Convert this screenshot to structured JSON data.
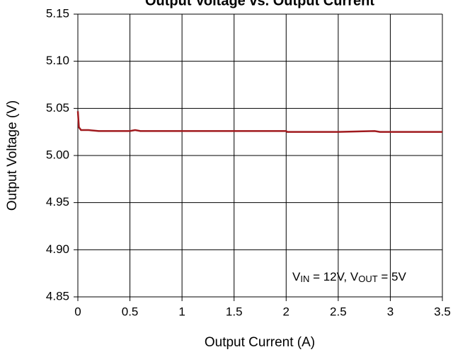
{
  "chart_data": {
    "type": "line",
    "title": "Output Voltage vs. Output Current",
    "x_label": "Output Current (A)",
    "y_label": "Output Voltage (V)",
    "annotation": [
      "V",
      "IN",
      " = 12V, V",
      "OUT",
      " = 5V"
    ],
    "xlim": [
      0,
      3.5
    ],
    "xticks": [
      0,
      0.5,
      1,
      1.5,
      2,
      2.5,
      3,
      3.5
    ],
    "ylim": [
      4.85,
      5.15
    ],
    "yticks": [
      {
        "value": 4.85,
        "label": "4.85"
      },
      {
        "value": 4.9,
        "label": "4.90"
      },
      {
        "value": 4.95,
        "label": "4.95"
      },
      {
        "value": 5,
        "label": "5.00"
      },
      {
        "value": 5.05,
        "label": "5.05"
      },
      {
        "value": 5.1,
        "label": "5.10"
      },
      {
        "value": 5.15,
        "label": "5.15"
      }
    ],
    "grid": true,
    "series": [
      {
        "color": "#a01a1e",
        "x": [
          0,
          0.01,
          0.03,
          0.1,
          0.2,
          0.5,
          0.55,
          0.6,
          1,
          1.5,
          2,
          2.01,
          2.5,
          2.85,
          2.9,
          3.5
        ],
        "values": [
          5.047,
          5.03,
          5.027,
          5.027,
          5.026,
          5.026,
          5.027,
          5.026,
          5.026,
          5.026,
          5.026,
          5.025,
          5.025,
          5.026,
          5.025,
          5.025
        ]
      }
    ]
  }
}
